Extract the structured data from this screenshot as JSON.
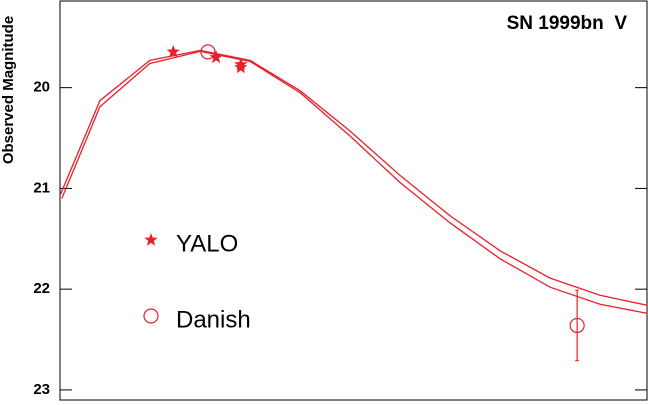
{
  "chart_data": {
    "type": "scatter",
    "title": "SN 1999bn  V",
    "y_label": "Observed Magnitude",
    "ylim": [
      19.14,
      23.1
    ],
    "y_inverted": true,
    "yticks": [
      20,
      21,
      22,
      23
    ],
    "xlim": [
      0,
      100
    ],
    "series": [
      {
        "name": "YALO",
        "color": "#e8202a",
        "marker": "star",
        "x": [
          19.3,
          26.6,
          30.8,
          30.8
        ],
        "values": [
          19.645,
          19.7,
          19.77,
          19.8
        ]
      },
      {
        "name": "Danish",
        "color": "#e8202a",
        "marker": "circle",
        "x": [
          25.2,
          88.1
        ],
        "values": [
          19.645,
          22.36
        ],
        "errors": [
          null,
          0.35
        ]
      },
      {
        "color": "#e8202a",
        "marker": "line",
        "x": [
          0,
          6.8,
          15.3,
          23.9,
          32.4,
          40.9,
          49.4,
          57.9,
          66.4,
          75.0,
          83.5,
          92.0,
          100
        ],
        "values": [
          21.07,
          20.13,
          19.73,
          19.63,
          19.73,
          20.03,
          20.43,
          20.87,
          21.27,
          21.62,
          21.89,
          22.06,
          22.16
        ]
      },
      {
        "color": "#e8202a",
        "marker": "line",
        "x": [
          0.3,
          6.8,
          15.3,
          23.9,
          32.4,
          40.9,
          49.4,
          57.9,
          66.4,
          75.0,
          83.5,
          92.0,
          100
        ],
        "values": [
          21.1,
          20.19,
          19.76,
          19.64,
          19.74,
          20.05,
          20.48,
          20.94,
          21.34,
          21.7,
          21.98,
          22.15,
          22.24
        ]
      }
    ]
  }
}
